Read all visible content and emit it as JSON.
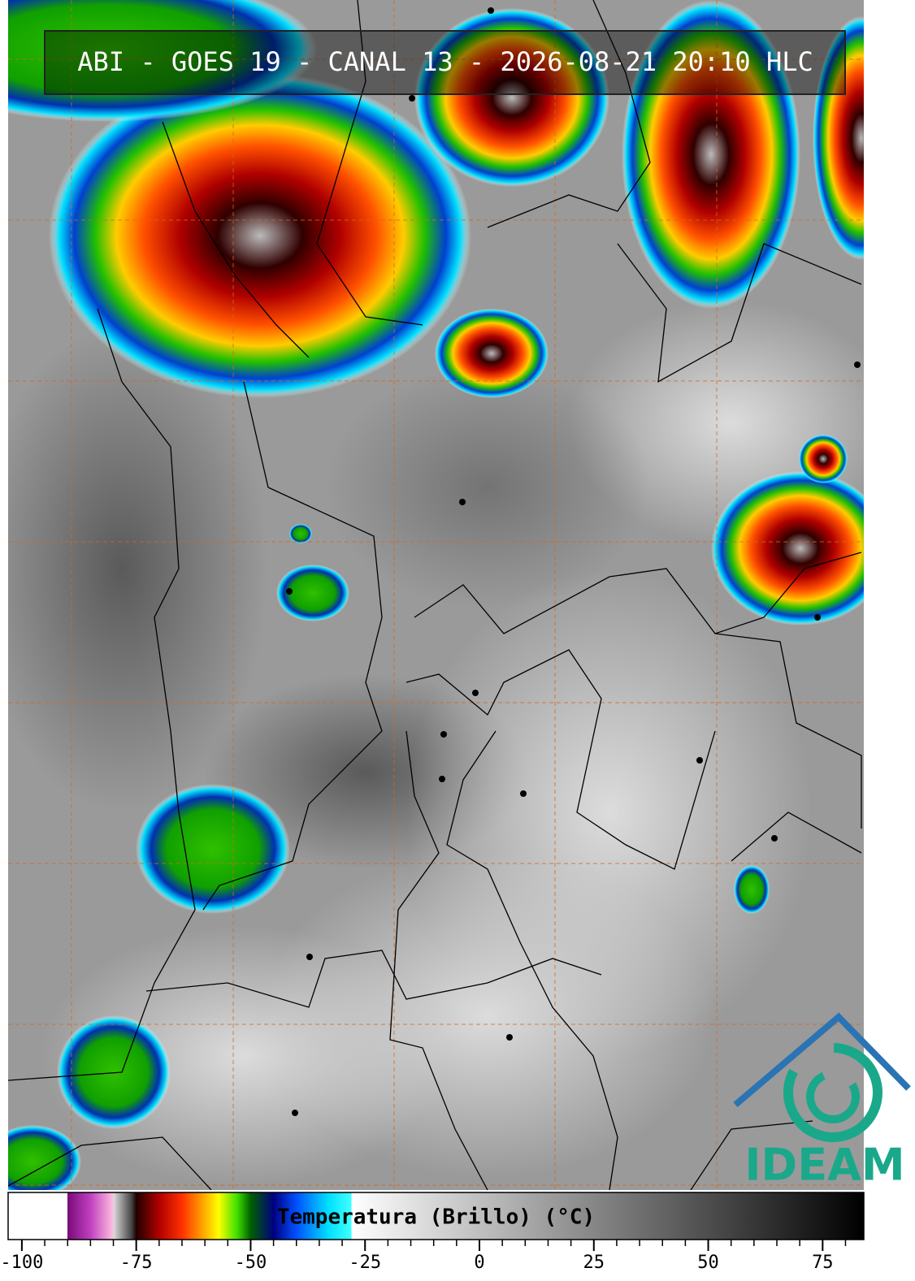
{
  "header": {
    "title": "ABI - GOES 19 - CANAL 13 - 2026-08-21 20:10 HLC"
  },
  "logo": {
    "text": "IDEAM"
  },
  "colorbar": {
    "label": "Temperatura (Brillo) (°C)",
    "lim": [
      -103,
      84
    ],
    "ticks": [
      -100,
      -75,
      -50,
      -25,
      0,
      25,
      50,
      75
    ],
    "colormap": [
      [
        -103,
        "#ffffff"
      ],
      [
        -90,
        "#ffffff"
      ],
      [
        -90,
        "#7a0a7a"
      ],
      [
        -85,
        "#c040c0"
      ],
      [
        -80,
        "#ffc0e0"
      ],
      [
        -80,
        "#dddddd"
      ],
      [
        -76,
        "#444444"
      ],
      [
        -75,
        "#200000"
      ],
      [
        -70,
        "#b00000"
      ],
      [
        -65,
        "#ff3000"
      ],
      [
        -60,
        "#ffb000"
      ],
      [
        -57,
        "#ffff00"
      ],
      [
        -53,
        "#40e000"
      ],
      [
        -50,
        "#006000"
      ],
      [
        -45,
        "#000080"
      ],
      [
        -40,
        "#0050ff"
      ],
      [
        -33,
        "#00e0ff"
      ],
      [
        -28,
        "#40ffff"
      ],
      [
        -28,
        "#ffffff"
      ],
      [
        84,
        "#000000"
      ]
    ]
  }
}
